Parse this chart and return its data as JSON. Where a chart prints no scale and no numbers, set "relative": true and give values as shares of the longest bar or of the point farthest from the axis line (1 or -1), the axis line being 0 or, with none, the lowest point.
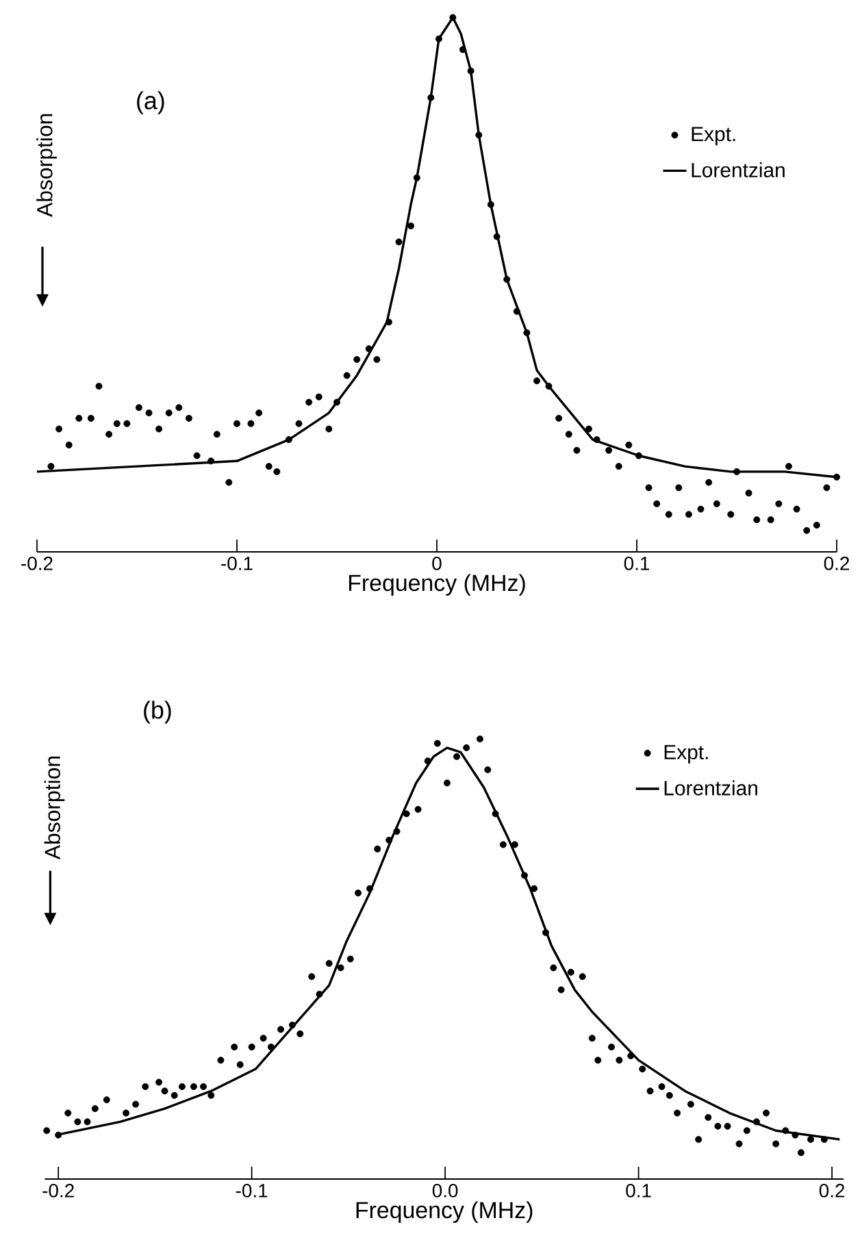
{
  "chart_data": [
    {
      "type": "scatter",
      "title": "(a)",
      "xlabel": "Frequency (MHz)",
      "ylabel": "Absorption",
      "relative": true,
      "legend": "top right",
      "xlim": [
        -0.2,
        0.2
      ],
      "xticks": [
        -0.2,
        -0.1,
        0,
        0.1,
        0.2
      ],
      "series": [
        {
          "name": "Expt.",
          "marker": "circle",
          "color": "#000000",
          "x": [
            -0.193,
            -0.189,
            -0.184,
            -0.179,
            -0.173,
            -0.169,
            -0.164,
            -0.16,
            -0.155,
            -0.149,
            -0.144,
            -0.139,
            -0.134,
            -0.129,
            -0.124,
            -0.12,
            -0.113,
            -0.11,
            -0.104,
            -0.1,
            -0.093,
            -0.089,
            -0.084,
            -0.08,
            -0.074,
            -0.069,
            -0.064,
            -0.059,
            -0.054,
            -0.05,
            -0.045,
            -0.04,
            -0.034,
            -0.03,
            -0.024,
            -0.019,
            -0.013,
            -0.01,
            -0.003,
            0.001,
            0.008,
            0.013,
            0.017,
            0.021,
            0.027,
            0.03,
            0.035,
            0.04,
            0.045,
            0.05,
            0.056,
            0.061,
            0.066,
            0.07,
            0.076,
            0.08,
            0.086,
            0.091,
            0.096,
            0.101,
            0.106,
            0.11,
            0.116,
            0.121,
            0.126,
            0.132,
            0.136,
            0.14,
            0.147,
            0.15,
            0.156,
            0.16,
            0.167,
            0.171,
            0.176,
            0.18,
            0.185,
            0.19,
            0.195,
            0.2
          ],
          "values": [
            0.16,
            0.23,
            0.2,
            0.25,
            0.25,
            0.31,
            0.22,
            0.24,
            0.24,
            0.27,
            0.26,
            0.23,
            0.26,
            0.27,
            0.25,
            0.18,
            0.17,
            0.22,
            0.13,
            0.24,
            0.24,
            0.26,
            0.16,
            0.15,
            0.21,
            0.24,
            0.28,
            0.29,
            0.23,
            0.28,
            0.33,
            0.36,
            0.38,
            0.36,
            0.43,
            0.58,
            0.61,
            0.7,
            0.85,
            0.96,
            1.0,
            0.94,
            0.9,
            0.78,
            0.65,
            0.59,
            0.51,
            0.45,
            0.41,
            0.32,
            0.31,
            0.25,
            0.22,
            0.19,
            0.23,
            0.21,
            0.19,
            0.16,
            0.2,
            0.18,
            0.12,
            0.09,
            0.07,
            0.12,
            0.07,
            0.08,
            0.13,
            0.09,
            0.07,
            0.15,
            0.11,
            0.06,
            0.06,
            0.09,
            0.16,
            0.08,
            0.04,
            0.05,
            0.12,
            0.14
          ]
        },
        {
          "name": "Lorentzian",
          "type": "line",
          "marker": "none",
          "color": "#000000",
          "x": [
            -0.2,
            -0.15,
            -0.1,
            -0.074,
            -0.054,
            -0.04,
            -0.025,
            -0.019,
            -0.013,
            -0.01,
            -0.003,
            0.001,
            0.008,
            0.012,
            0.017,
            0.021,
            0.027,
            0.035,
            0.045,
            0.05,
            0.056,
            0.078,
            0.101,
            0.124,
            0.147,
            0.174,
            0.2
          ],
          "values": [
            0.15,
            0.16,
            0.17,
            0.21,
            0.26,
            0.33,
            0.43,
            0.53,
            0.65,
            0.7,
            0.85,
            0.96,
            1.0,
            0.97,
            0.9,
            0.78,
            0.65,
            0.51,
            0.41,
            0.34,
            0.31,
            0.21,
            0.18,
            0.16,
            0.15,
            0.15,
            0.14
          ]
        }
      ]
    },
    {
      "type": "scatter",
      "title": "(b)",
      "xlabel": "Frequency (MHz)",
      "ylabel": "Absorption",
      "relative": true,
      "legend": "top right",
      "xlim": [
        -0.207,
        0.206
      ],
      "xticks": [
        -0.2,
        -0.1,
        {
          "value": 0,
          "label": "0.0"
        },
        0.1,
        0.2
      ],
      "series": [
        {
          "name": "Expt.",
          "marker": "circle",
          "color": "#000000",
          "x": [
            -0.206,
            -0.2,
            -0.195,
            -0.19,
            -0.185,
            -0.181,
            -0.175,
            -0.165,
            -0.16,
            -0.155,
            -0.148,
            -0.145,
            -0.14,
            -0.136,
            -0.13,
            -0.125,
            -0.121,
            -0.116,
            -0.109,
            -0.106,
            -0.1,
            -0.094,
            -0.09,
            -0.085,
            -0.079,
            -0.075,
            -0.069,
            -0.065,
            -0.06,
            -0.054,
            -0.049,
            -0.045,
            -0.039,
            -0.035,
            -0.029,
            -0.025,
            -0.02,
            -0.014,
            -0.009,
            -0.004,
            0.001,
            0.006,
            0.011,
            0.018,
            0.022,
            0.026,
            0.03,
            0.036,
            0.041,
            0.046,
            0.052,
            0.056,
            0.06,
            0.065,
            0.071,
            0.076,
            0.079,
            0.086,
            0.09,
            0.096,
            0.102,
            0.106,
            0.112,
            0.116,
            0.12,
            0.127,
            0.131,
            0.136,
            0.141,
            0.146,
            0.152,
            0.156,
            0.161,
            0.166,
            0.171,
            0.176,
            0.181,
            0.184,
            0.189,
            0.196
          ],
          "values": [
            0.11,
            0.1,
            0.15,
            0.13,
            0.13,
            0.16,
            0.18,
            0.15,
            0.17,
            0.21,
            0.22,
            0.2,
            0.19,
            0.21,
            0.21,
            0.21,
            0.19,
            0.27,
            0.3,
            0.26,
            0.3,
            0.32,
            0.3,
            0.34,
            0.35,
            0.33,
            0.46,
            0.42,
            0.49,
            0.48,
            0.5,
            0.65,
            0.66,
            0.75,
            0.77,
            0.79,
            0.83,
            0.84,
            0.95,
            0.99,
            0.9,
            0.96,
            0.98,
            1.0,
            0.93,
            0.83,
            0.76,
            0.76,
            0.69,
            0.66,
            0.56,
            0.48,
            0.43,
            0.47,
            0.46,
            0.32,
            0.27,
            0.3,
            0.27,
            0.28,
            0.25,
            0.2,
            0.21,
            0.19,
            0.15,
            0.17,
            0.09,
            0.14,
            0.12,
            0.12,
            0.08,
            0.11,
            0.13,
            0.15,
            0.08,
            0.11,
            0.1,
            0.06,
            0.09,
            0.09
          ]
        },
        {
          "name": "Lorentzian",
          "type": "line",
          "marker": "none",
          "color": "#000000",
          "x": [
            -0.201,
            -0.168,
            -0.145,
            -0.121,
            -0.098,
            -0.074,
            -0.06,
            -0.051,
            -0.039,
            -0.027,
            -0.015,
            -0.006,
            0.001,
            0.008,
            0.02,
            0.032,
            0.044,
            0.055,
            0.067,
            0.076,
            0.1,
            0.124,
            0.147,
            0.171,
            0.204
          ],
          "values": [
            0.1,
            0.13,
            0.16,
            0.2,
            0.25,
            0.37,
            0.44,
            0.54,
            0.65,
            0.78,
            0.9,
            0.96,
            0.98,
            0.97,
            0.89,
            0.78,
            0.66,
            0.53,
            0.43,
            0.38,
            0.27,
            0.2,
            0.15,
            0.11,
            0.09
          ]
        }
      ]
    }
  ]
}
